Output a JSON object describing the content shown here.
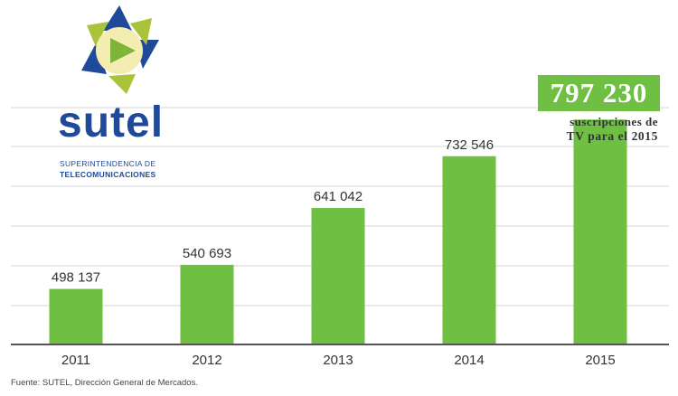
{
  "logo": {
    "name": "sutel",
    "subtitle_line1": "SUPERINTENDENCIA DE",
    "subtitle_line2": "TELECOMUNICACIONES"
  },
  "highlight": {
    "value": "797 230",
    "caption_line1": "suscripciones de",
    "caption_line2": "TV para el 2015"
  },
  "source": "Fuente: SUTEL, Dirección General de Mercados.",
  "colors": {
    "bar": "#6fbf43",
    "logo_blue": "#1f4a9a",
    "gridline": "#d6d6d6"
  },
  "chart_data": {
    "type": "bar",
    "categories": [
      "2011",
      "2012",
      "2013",
      "2014",
      "2015"
    ],
    "values": [
      498137,
      540693,
      641042,
      732546,
      797230
    ],
    "labels": [
      "498 137",
      "540 693",
      "641 042",
      "732 546",
      ""
    ],
    "title": "",
    "xlabel": "",
    "ylabel": "",
    "ylim": [
      400000,
      820000
    ],
    "grid": true,
    "legend": "none"
  }
}
